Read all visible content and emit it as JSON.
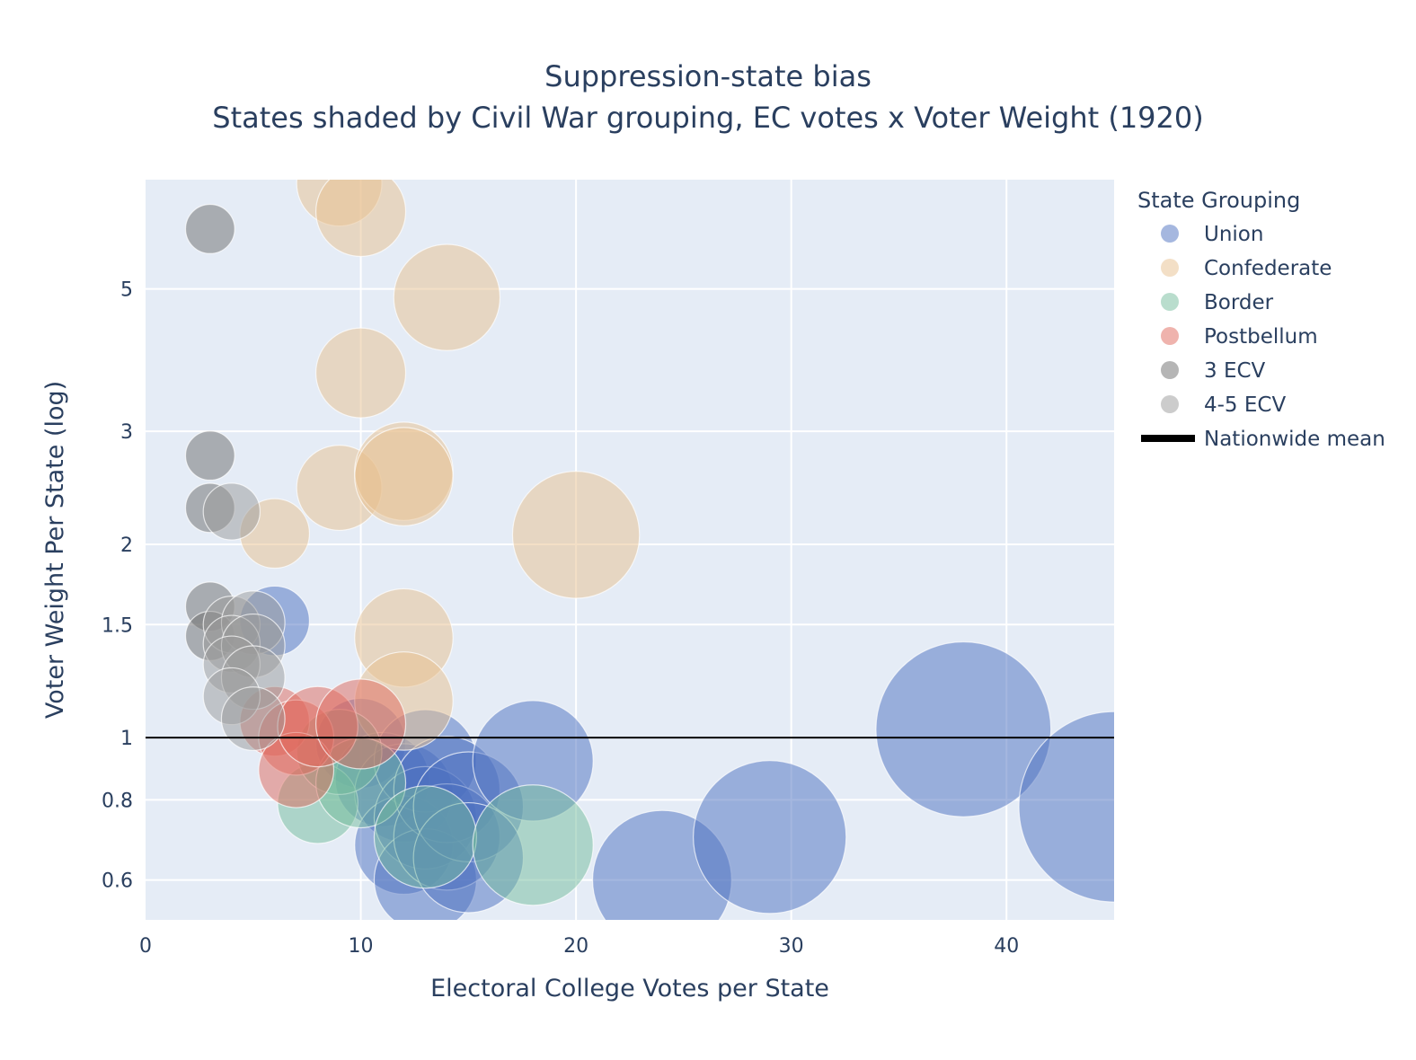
{
  "chart_data": {
    "type": "scatter",
    "title": "Suppression-state bias",
    "subtitle": "States shaded by Civil War grouping, EC votes x Voter Weight (1920)",
    "xlabel": "Electoral College Votes per State",
    "ylabel": "Voter Weight Per State (log)",
    "xlim": [
      0,
      45
    ],
    "ylim": [
      0.52,
      7.4
    ],
    "y_scale": "log",
    "x_ticks": [
      "0",
      "10",
      "20",
      "30",
      "40"
    ],
    "y_ticks": [
      "0.6",
      "0.8",
      "1",
      "1.5",
      "2",
      "3",
      "5"
    ],
    "grid": true,
    "legend_title": "State Grouping",
    "legend_position": "right",
    "reference_line": {
      "name": "Nationwide mean",
      "y": 1
    },
    "series": [
      {
        "name": "Union",
        "color": "#4c6fbf",
        "points": [
          {
            "x": 6,
            "y": 1.52
          },
          {
            "x": 10,
            "y": 0.98
          },
          {
            "x": 11,
            "y": 0.86
          },
          {
            "x": 12,
            "y": 0.82
          },
          {
            "x": 12,
            "y": 0.68
          },
          {
            "x": 13,
            "y": 0.92
          },
          {
            "x": 13,
            "y": 0.75
          },
          {
            "x": 13,
            "y": 0.6
          },
          {
            "x": 14,
            "y": 0.83
          },
          {
            "x": 14,
            "y": 0.7
          },
          {
            "x": 15,
            "y": 0.78
          },
          {
            "x": 15,
            "y": 0.65
          },
          {
            "x": 18,
            "y": 0.92
          },
          {
            "x": 24,
            "y": 0.6
          },
          {
            "x": 29,
            "y": 0.7
          },
          {
            "x": 38,
            "y": 1.03
          },
          {
            "x": 45,
            "y": 0.78
          }
        ]
      },
      {
        "name": "Confederate",
        "color": "#e8c08e",
        "points": [
          {
            "x": 9,
            "y": 7.3
          },
          {
            "x": 10,
            "y": 6.6
          },
          {
            "x": 14,
            "y": 4.85
          },
          {
            "x": 10,
            "y": 3.7
          },
          {
            "x": 9,
            "y": 2.45
          },
          {
            "x": 12,
            "y": 2.6
          },
          {
            "x": 12,
            "y": 2.55
          },
          {
            "x": 6,
            "y": 2.08
          },
          {
            "x": 20,
            "y": 2.07
          },
          {
            "x": 12,
            "y": 1.43
          },
          {
            "x": 12,
            "y": 1.14
          }
        ]
      },
      {
        "name": "Border",
        "color": "#74bc9c",
        "points": [
          {
            "x": 8,
            "y": 0.79
          },
          {
            "x": 9,
            "y": 0.95
          },
          {
            "x": 10,
            "y": 0.85
          },
          {
            "x": 13,
            "y": 0.7
          },
          {
            "x": 18,
            "y": 0.68
          }
        ]
      },
      {
        "name": "Postbellum",
        "color": "#e0675c",
        "points": [
          {
            "x": 6,
            "y": 1.06
          },
          {
            "x": 7,
            "y": 1.0
          },
          {
            "x": 7,
            "y": 0.89
          },
          {
            "x": 8,
            "y": 1.04
          },
          {
            "x": 10,
            "y": 1.05
          }
        ]
      },
      {
        "name": "3 ECV",
        "color": "#6b6b6b",
        "points": [
          {
            "x": 3,
            "y": 6.2
          },
          {
            "x": 3,
            "y": 2.75
          },
          {
            "x": 3,
            "y": 2.28
          },
          {
            "x": 3,
            "y": 1.6
          },
          {
            "x": 3,
            "y": 1.44
          }
        ]
      },
      {
        "name": "4-5 ECV",
        "color": "#9a9a9a",
        "points": [
          {
            "x": 4,
            "y": 2.25
          },
          {
            "x": 4,
            "y": 1.5
          },
          {
            "x": 5,
            "y": 1.51
          },
          {
            "x": 4,
            "y": 1.4
          },
          {
            "x": 5,
            "y": 1.39
          },
          {
            "x": 4,
            "y": 1.3
          },
          {
            "x": 5,
            "y": 1.24
          },
          {
            "x": 4,
            "y": 1.16
          },
          {
            "x": 5,
            "y": 1.07
          }
        ]
      }
    ]
  }
}
